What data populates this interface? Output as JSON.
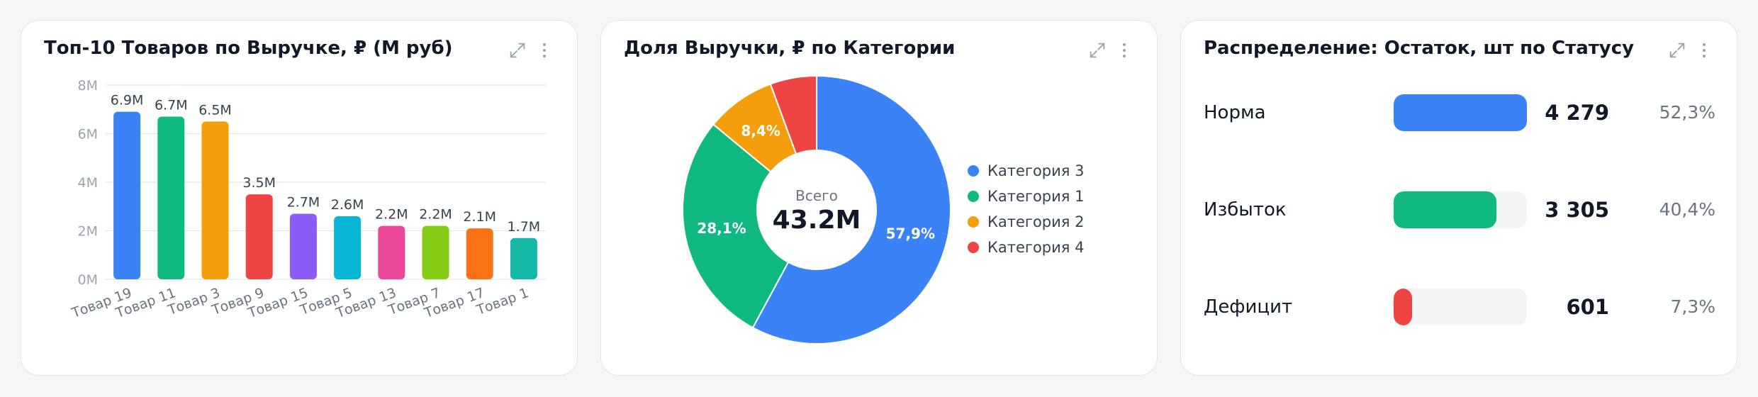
{
  "icons": {
    "expand": "expand-icon",
    "more": "more-vertical-icon"
  },
  "colors": {
    "blue": "#3b82f6",
    "green": "#10b981",
    "orange": "#f59e0b",
    "red": "#ef4444",
    "purple": "#8b5cf6",
    "cyan": "#06b6d4",
    "pink": "#ec4899",
    "lime": "#84cc16",
    "deep_orange": "#f97316",
    "teal": "#14b8a6"
  },
  "chart_data": [
    {
      "type": "bar",
      "title": "Топ-10 Товаров по Выручке, ₽ (М руб)",
      "categories": [
        "Товар 19",
        "Товар 11",
        "Товар 3",
        "Товар 9",
        "Товар 15",
        "Товар 5",
        "Товар 13",
        "Товар 7",
        "Товар 17",
        "Товар 1"
      ],
      "values": [
        6.9,
        6.7,
        6.5,
        3.5,
        2.7,
        2.6,
        2.2,
        2.2,
        2.1,
        1.7
      ],
      "data_labels": [
        "6.9M",
        "6.7M",
        "6.5M",
        "3.5M",
        "2.7M",
        "2.6M",
        "2.2M",
        "2.2M",
        "2.1M",
        "1.7M"
      ],
      "bar_colors": [
        "#3b82f6",
        "#10b981",
        "#f59e0b",
        "#ef4444",
        "#8b5cf6",
        "#06b6d4",
        "#ec4899",
        "#84cc16",
        "#f97316",
        "#14b8a6"
      ],
      "yticks": [
        0,
        2,
        4,
        6,
        8
      ],
      "ytick_labels": [
        "0M",
        "2M",
        "4M",
        "6M",
        "8M"
      ],
      "ylim": [
        0,
        8
      ],
      "grid": true
    },
    {
      "type": "pie",
      "title": "Доля Выручки, ₽ по Категории",
      "center_label": "Всего",
      "center_value": "43.2M",
      "slices": [
        {
          "name": "Категория 3",
          "value": 57.9,
          "label": "57,9%",
          "color": "#3b82f6"
        },
        {
          "name": "Категория 1",
          "value": 28.1,
          "label": "28,1%",
          "color": "#10b981"
        },
        {
          "name": "Категория 2",
          "value": 8.4,
          "label": "8,4%",
          "color": "#f59e0b"
        },
        {
          "name": "Категория 4",
          "value": 5.6,
          "label": "",
          "color": "#ef4444"
        }
      ],
      "legend_position": "right"
    },
    {
      "type": "bar",
      "title": "Распределение: Остаток, шт по Статусу",
      "rows": [
        {
          "label": "Норма",
          "count": "4 279",
          "pct": "52,3%",
          "fill": 1.0,
          "color": "#3b82f6"
        },
        {
          "label": "Избыток",
          "count": "3 305",
          "pct": "40,4%",
          "fill": 0.772,
          "color": "#10b981"
        },
        {
          "label": "Дефицит",
          "count": "601",
          "pct": "7,3%",
          "fill": 0.14,
          "color": "#ef4444"
        }
      ]
    }
  ]
}
